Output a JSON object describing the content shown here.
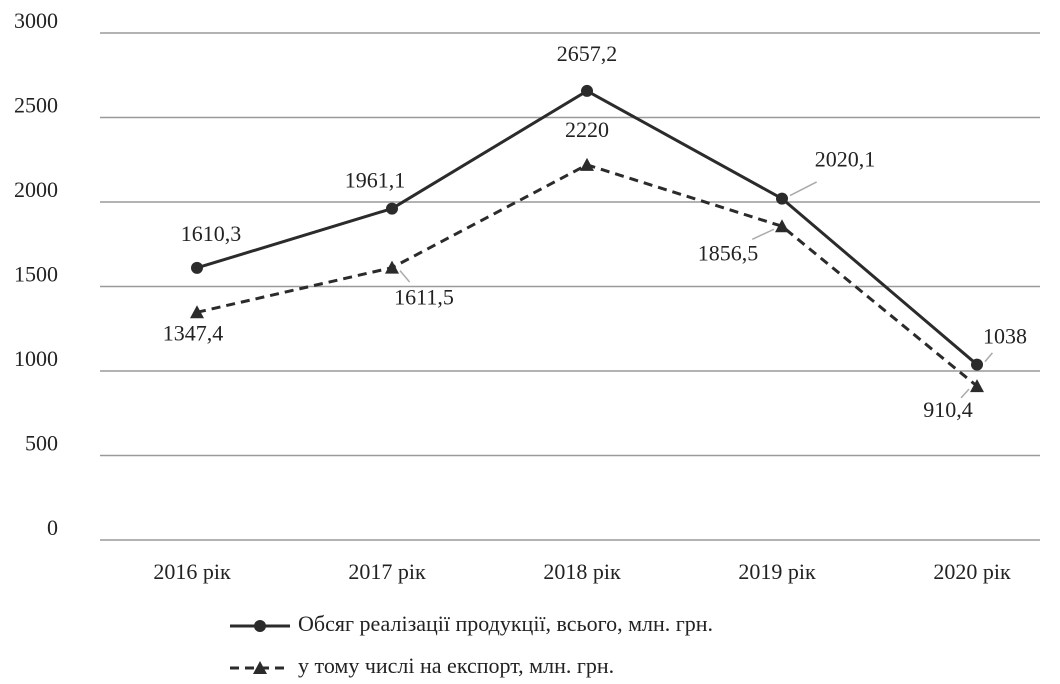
{
  "chart_data": {
    "type": "line",
    "categories": [
      "2016 рік",
      "2017 рік",
      "2018 рік",
      "2019 рік",
      "2020 рік"
    ],
    "series": [
      {
        "name": "Обсяг реалізації продукції, всього, млн. грн.",
        "color": "#2b2b2b",
        "marker": "circle",
        "dash": "solid",
        "values": [
          1610.3,
          1961.1,
          2657.2,
          2020.1,
          1038
        ],
        "value_labels": [
          "1610,3",
          "1961,1",
          "2657,2",
          "2020,1",
          "1038"
        ]
      },
      {
        "name": "у тому числі на експорт, млн. грн.",
        "color": "#2b2b2b",
        "marker": "triangle",
        "dash": "dashed",
        "values": [
          1347.4,
          1611.5,
          2220,
          1856.5,
          910.4
        ],
        "value_labels": [
          "1347,4",
          "1611,5",
          "2220",
          "1856,5",
          "910,4"
        ]
      }
    ],
    "ylim": [
      0,
      3000
    ],
    "yticks": [
      0,
      500,
      1000,
      1500,
      2000,
      2500,
      3000
    ],
    "grid": true,
    "legend": "bottom"
  }
}
